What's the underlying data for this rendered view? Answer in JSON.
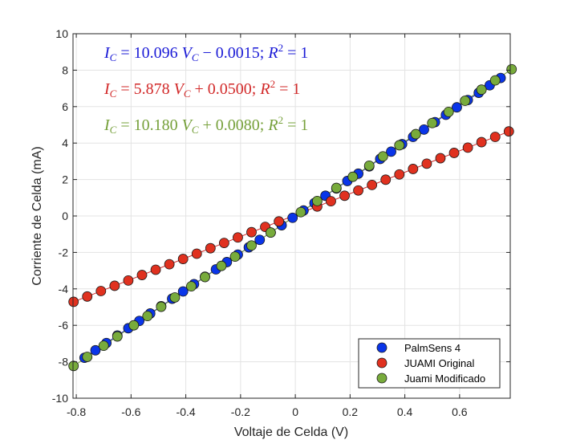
{
  "chart_data": {
    "type": "scatter",
    "xlabel": "Voltaje de Celda (V)",
    "ylabel": "Corriente de Celda (mA)",
    "xlim": [
      -0.812,
      0.785
    ],
    "ylim": [
      -10,
      10
    ],
    "xticks": [
      "-0.8",
      "-0.6",
      "-0.4",
      "-0.2",
      "0",
      "0.2",
      "0.4",
      "0.6"
    ],
    "xtick_values": [
      -0.8,
      -0.6,
      -0.4,
      -0.2,
      0,
      0.2,
      0.4,
      0.6
    ],
    "yticks": [
      "10",
      "8",
      "6",
      "4",
      "2",
      "0",
      "-2",
      "-4",
      "-6",
      "-8",
      "-10"
    ],
    "ytick_values": [
      10,
      8,
      6,
      4,
      2,
      0,
      -2,
      -4,
      -6,
      -8,
      -10
    ],
    "grid": true,
    "legend_position": "bottom-right",
    "series": [
      {
        "name": "PalmSens 4",
        "color": "#0a35e8",
        "fit": {
          "slope": 10.096,
          "intercept": -0.0015,
          "label": "I_C = 10.096 V_C − 0.0015; R² = 1",
          "color": "#1a1ad6"
        },
        "x": [
          -0.77,
          -0.73,
          -0.69,
          -0.65,
          -0.61,
          -0.57,
          -0.53,
          -0.49,
          -0.45,
          -0.41,
          -0.37,
          -0.33,
          -0.29,
          -0.25,
          -0.21,
          -0.17,
          -0.13,
          -0.09,
          -0.05,
          -0.01,
          0.03,
          0.07,
          0.11,
          0.15,
          0.19,
          0.23,
          0.27,
          0.31,
          0.35,
          0.39,
          0.43,
          0.47,
          0.51,
          0.55,
          0.59,
          0.63,
          0.67,
          0.71,
          0.75
        ],
        "y": [
          -7.78,
          -7.37,
          -6.97,
          -6.56,
          -6.16,
          -5.76,
          -5.35,
          -4.95,
          -4.54,
          -4.14,
          -3.74,
          -3.33,
          -2.93,
          -2.53,
          -2.12,
          -1.72,
          -1.31,
          -0.91,
          -0.51,
          -0.1,
          0.3,
          0.71,
          1.11,
          1.51,
          1.92,
          2.32,
          2.72,
          3.13,
          3.53,
          3.94,
          4.34,
          4.74,
          5.15,
          5.55,
          5.96,
          6.36,
          6.76,
          7.17,
          7.57
        ]
      },
      {
        "name": "JUAMI Original",
        "color": "#e0311f",
        "fit": {
          "slope": 5.878,
          "intercept": 0.05,
          "label": "I_C = 5.878 V_C + 0.0500; R² = 1",
          "color": "#d22a2a"
        },
        "x": [
          -0.81,
          -0.76,
          -0.71,
          -0.66,
          -0.61,
          -0.56,
          -0.51,
          -0.46,
          -0.41,
          -0.36,
          -0.31,
          -0.26,
          -0.21,
          -0.16,
          -0.11,
          -0.06,
          0.08,
          0.13,
          0.18,
          0.23,
          0.28,
          0.33,
          0.38,
          0.43,
          0.48,
          0.53,
          0.58,
          0.63,
          0.68,
          0.73,
          0.78
        ],
        "y": [
          -4.71,
          -4.42,
          -4.12,
          -3.83,
          -3.54,
          -3.24,
          -2.95,
          -2.65,
          -2.36,
          -2.07,
          -1.77,
          -1.48,
          -1.18,
          -0.89,
          -0.6,
          -0.3,
          0.52,
          0.81,
          1.11,
          1.4,
          1.7,
          1.99,
          2.28,
          2.58,
          2.87,
          3.17,
          3.46,
          3.75,
          4.05,
          4.34,
          4.64
        ]
      },
      {
        "name": "Juami Modificado",
        "color": "#78ab3c",
        "fit": {
          "slope": 10.18,
          "intercept": 0.008,
          "label": "I_C = 10.180 V_C + 0.0080; R² = 1",
          "color": "#76a03a"
        },
        "x": [
          -0.81,
          -0.76,
          -0.7,
          -0.65,
          -0.59,
          -0.54,
          -0.49,
          -0.44,
          -0.38,
          -0.33,
          -0.27,
          -0.22,
          -0.16,
          -0.09,
          0.02,
          0.08,
          0.15,
          0.21,
          0.27,
          0.32,
          0.38,
          0.44,
          0.5,
          0.56,
          0.62,
          0.68,
          0.73,
          0.79
        ],
        "y": [
          -8.23,
          -7.73,
          -7.12,
          -6.61,
          -6.0,
          -5.49,
          -4.98,
          -4.47,
          -3.86,
          -3.35,
          -2.74,
          -2.23,
          -1.62,
          -0.91,
          0.21,
          0.82,
          1.54,
          2.15,
          2.76,
          3.27,
          3.88,
          4.49,
          5.1,
          5.71,
          6.32,
          6.93,
          7.44,
          8.05
        ]
      }
    ],
    "annotations": [
      {
        "parts": [
          "I",
          "C",
          " = 10.096 ",
          "V",
          "C",
          " − 0.0015; ",
          "R",
          "2",
          " = 1"
        ],
        "color": "#1a1ad6"
      },
      {
        "parts": [
          "I",
          "C",
          " = 5.878 ",
          "V",
          "C",
          " + 0.0500; ",
          "R",
          "2",
          " = 1"
        ],
        "color": "#d22a2a"
      },
      {
        "parts": [
          "I",
          "C",
          " = 10.180 ",
          "V",
          "C",
          " + 0.0080; ",
          "R",
          "2",
          " = 1"
        ],
        "color": "#76a03a"
      }
    ]
  }
}
